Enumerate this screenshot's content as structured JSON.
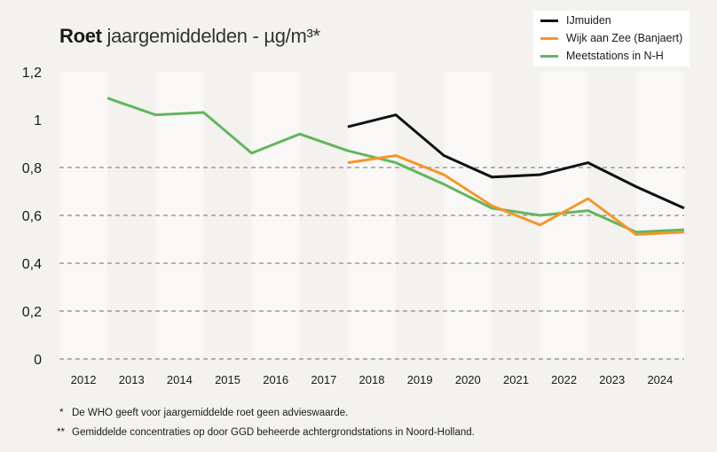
{
  "title": {
    "bold": "Roet",
    "rest": "jaargemiddelden - µg/m³*"
  },
  "legend": [
    {
      "label": "IJmuiden",
      "color": "#111111"
    },
    {
      "label": "Wijk aan Zee (Banjaert)",
      "color": "#f5962a"
    },
    {
      "label": "Meetstations in N-H",
      "color": "#63b55f"
    }
  ],
  "footnotes": [
    {
      "mark": "*",
      "text": "De WHO geeft voor jaargemiddelde roet geen advieswaarde."
    },
    {
      "mark": "**",
      "text": "Gemiddelde concentraties op door GGD beheerde achtergrondstations in Noord-Holland."
    }
  ],
  "chart_data": {
    "type": "line",
    "title": "Roet jaargemiddelden - µg/m³*",
    "xlabel": "",
    "ylabel": "",
    "categories": [
      "2012",
      "2013",
      "2014",
      "2015",
      "2016",
      "2017",
      "2018",
      "2019",
      "2020",
      "2021",
      "2022",
      "2023",
      "2024"
    ],
    "ylim": [
      0,
      1.2
    ],
    "yticks": [
      0,
      0.2,
      0.4,
      0.6,
      0.8,
      1,
      1.2
    ],
    "ytick_labels": [
      "0",
      "0,2",
      "0,4",
      "0,6",
      "0,8",
      "1",
      "1,2"
    ],
    "gridlines": [
      0,
      0.2,
      0.4,
      0.6,
      0.8
    ],
    "grid": true,
    "alternating_bands": true,
    "legend_position": "top-right",
    "series": [
      {
        "name": "IJmuiden",
        "color": "#111111",
        "values": [
          null,
          null,
          null,
          null,
          null,
          0.97,
          1.02,
          0.85,
          0.76,
          0.77,
          0.82,
          0.72,
          0.63
        ]
      },
      {
        "name": "Wijk aan Zee (Banjaert)",
        "color": "#f5962a",
        "values": [
          null,
          null,
          null,
          null,
          null,
          0.82,
          0.85,
          0.77,
          0.64,
          0.56,
          0.67,
          0.52,
          0.53
        ]
      },
      {
        "name": "Meetstations in N-H",
        "color": "#63b55f",
        "values": [
          1.09,
          1.02,
          1.03,
          0.86,
          0.94,
          0.87,
          0.82,
          0.73,
          0.63,
          0.6,
          0.62,
          0.53,
          0.54
        ]
      }
    ]
  }
}
